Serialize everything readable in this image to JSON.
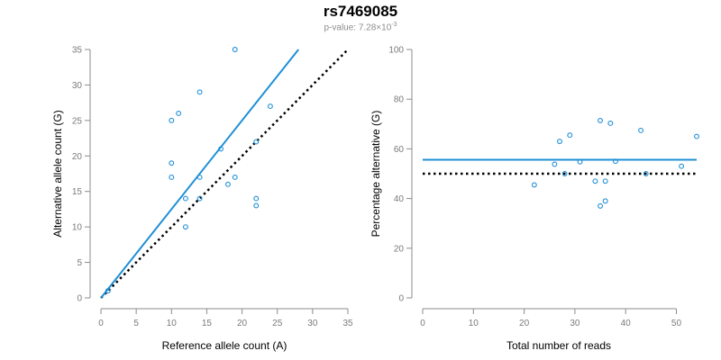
{
  "figure": {
    "title": "rs7469085",
    "subtitle_prefix": "p-value: 7.28×10",
    "subtitle_exponent": "-3"
  },
  "colors": {
    "points": "#1f8fd6",
    "fit_line": "#1f8fd6",
    "reference_line": "#000000"
  },
  "chart_data": [
    {
      "type": "scatter",
      "xlabel": "Reference allele count (A)",
      "ylabel": "Alternative allele count (G)",
      "xlim": [
        0,
        35
      ],
      "ylim": [
        0,
        35
      ],
      "xticks": [
        0,
        5,
        10,
        15,
        20,
        25,
        30,
        35
      ],
      "yticks": [
        0,
        5,
        10,
        15,
        20,
        25,
        30,
        35
      ],
      "x": [
        1,
        10,
        10,
        10,
        11,
        12,
        12,
        14,
        14,
        14,
        17,
        18,
        19,
        19,
        22,
        22,
        22,
        24
      ],
      "y": [
        1,
        25,
        19,
        17,
        26,
        14,
        10,
        29,
        17,
        14,
        21,
        16,
        17,
        35,
        22,
        14,
        13,
        27
      ],
      "fit_line": {
        "x": [
          0,
          28
        ],
        "y": [
          0,
          35
        ]
      },
      "reference_line": {
        "x": [
          0,
          35
        ],
        "y": [
          0,
          35
        ],
        "style": "dotted"
      }
    },
    {
      "type": "scatter",
      "xlabel": "Total number of reads",
      "ylabel": "Percentage alternative (G)",
      "xlim": [
        0,
        54
      ],
      "ylim": [
        0,
        100
      ],
      "xticks": [
        0,
        10,
        20,
        30,
        40,
        50
      ],
      "yticks": [
        0,
        20,
        40,
        60,
        80,
        100
      ],
      "x": [
        22,
        26,
        27,
        28,
        29,
        31,
        34,
        35,
        35,
        36,
        36,
        37,
        38,
        43,
        44,
        51,
        54
      ],
      "y": [
        45.5,
        53.8,
        63,
        50,
        65.5,
        54.8,
        47,
        71.4,
        37,
        39,
        47,
        70.3,
        55,
        67.4,
        50,
        53,
        65
      ],
      "fit_line": {
        "y": 55.6
      },
      "reference_line": {
        "y": 50,
        "style": "dotted"
      }
    }
  ]
}
